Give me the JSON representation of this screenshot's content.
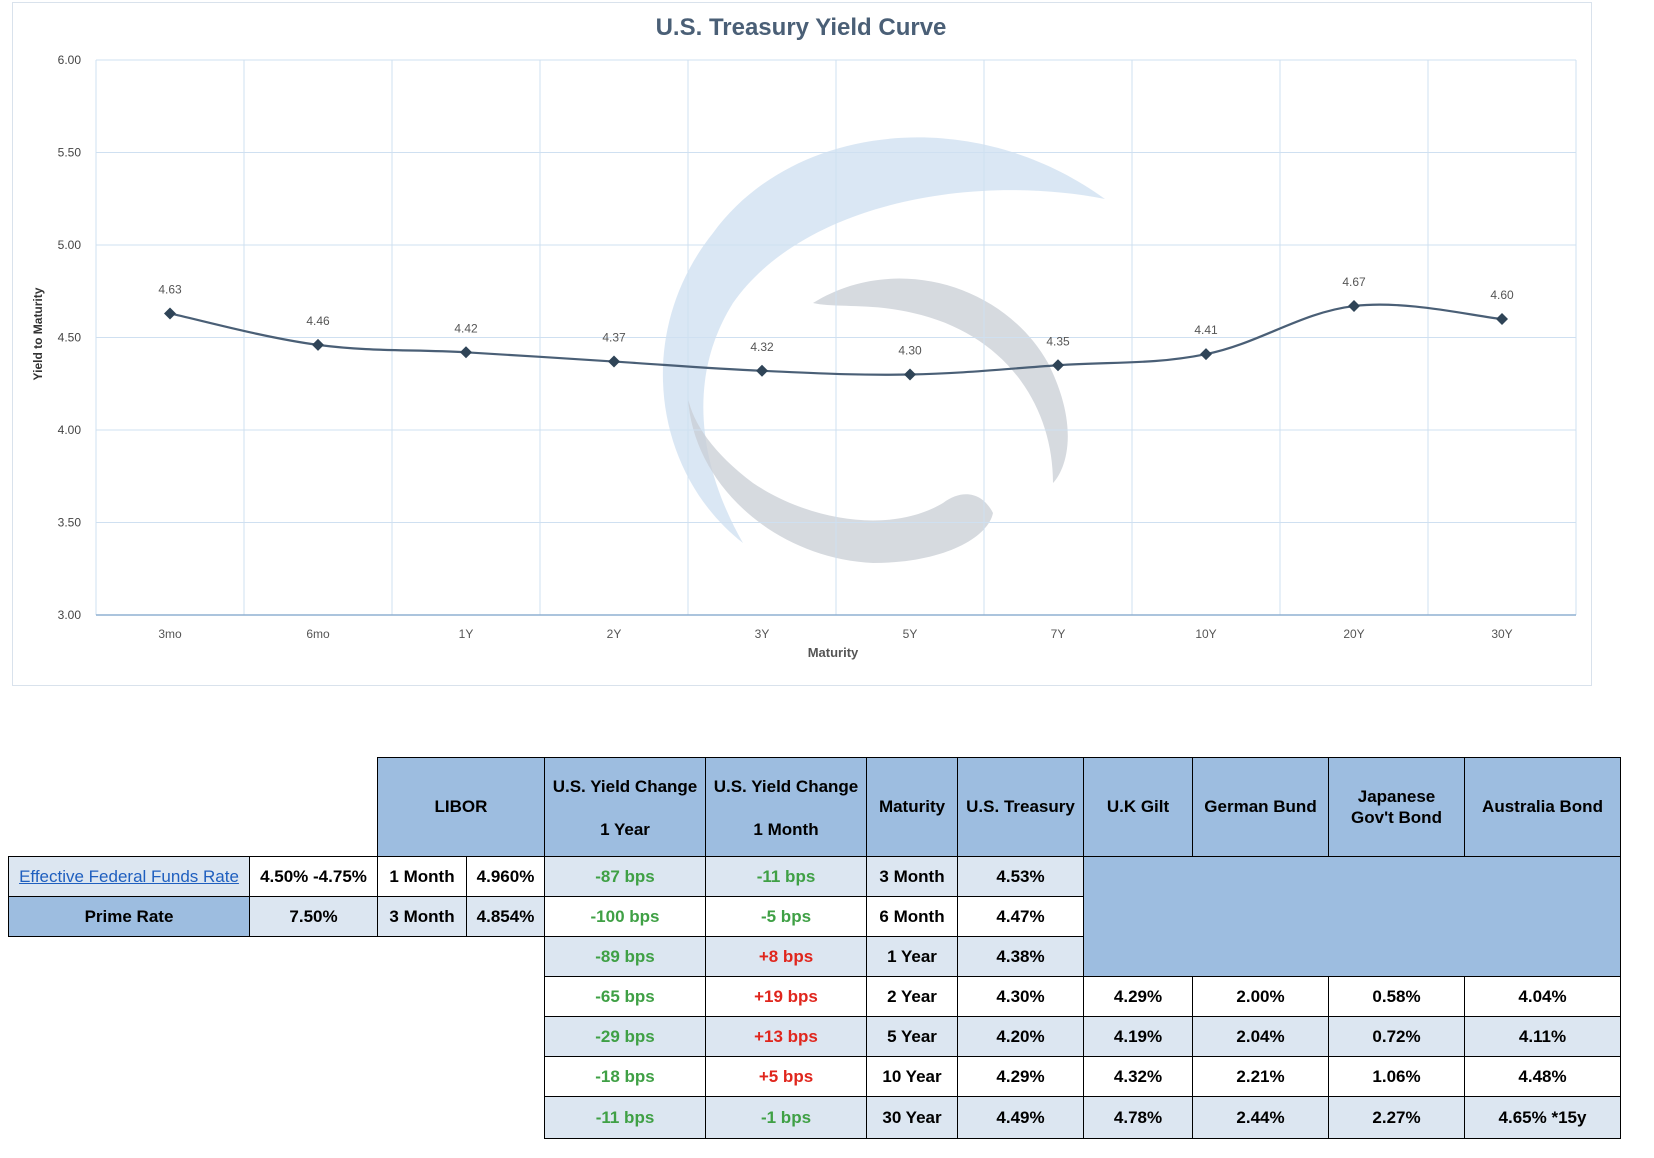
{
  "chart_data": {
    "type": "line",
    "title": "U.S. Treasury Yield Curve",
    "xlabel": "Maturity",
    "ylabel": "Yield to Maturity",
    "categories": [
      "3mo",
      "6mo",
      "1Y",
      "2Y",
      "3Y",
      "5Y",
      "7Y",
      "10Y",
      "20Y",
      "30Y"
    ],
    "values": [
      4.63,
      4.46,
      4.42,
      4.37,
      4.32,
      4.3,
      4.35,
      4.41,
      4.67,
      4.6
    ],
    "value_labels": [
      "4.63",
      "4.46",
      "4.42",
      "4.37",
      "4.32",
      "4.30",
      "4.35",
      "4.41",
      "4.67",
      "4.60"
    ],
    "ylim": [
      3.0,
      6.0
    ],
    "yticks": [
      "3.00",
      "3.50",
      "4.00",
      "4.50",
      "5.00",
      "5.50",
      "6.00"
    ],
    "grid": true,
    "line_color": "#4a5f76",
    "marker": "diamond"
  },
  "table": {
    "headers": {
      "libor": "LIBOR",
      "yc1y_line1": "U.S. Yield Change",
      "yc1y_line2": "1 Year",
      "yc1m_line1": "U.S. Yield Change",
      "yc1m_line2": "1 Month",
      "maturity": "Maturity",
      "treasury": "U.S. Treasury",
      "gilt": "U.K Gilt",
      "bund": "German Bund",
      "jgb_line1": "Japanese",
      "jgb_line2": "Gov't Bond",
      "aus": "Australia Bond"
    },
    "left": {
      "effr_label": "Effective Federal Funds Rate",
      "effr_value": "4.50% -4.75%",
      "prime_label": "Prime Rate",
      "prime_value": "7.50%"
    },
    "libor": [
      {
        "term": "1 Month",
        "rate": "4.960%"
      },
      {
        "term": "3 Month",
        "rate": "4.854%"
      }
    ],
    "rows": [
      {
        "yc1y": "-87 bps",
        "yc1m": "-11 bps",
        "maturity": "3 Month",
        "treasury": "4.53%"
      },
      {
        "yc1y": "-100 bps",
        "yc1m": "-5 bps",
        "maturity": "6 Month",
        "treasury": "4.47%"
      },
      {
        "yc1y": "-89 bps",
        "yc1m": "+8 bps",
        "maturity": "1 Year",
        "treasury": "4.38%"
      },
      {
        "yc1y": "-65 bps",
        "yc1m": "+19 bps",
        "maturity": "2 Year",
        "treasury": "4.30%",
        "gilt": "4.29%",
        "bund": "2.00%",
        "jgb": "0.58%",
        "aus": "4.04%"
      },
      {
        "yc1y": "-29 bps",
        "yc1m": "+13 bps",
        "maturity": "5 Year",
        "treasury": "4.20%",
        "gilt": "4.19%",
        "bund": "2.04%",
        "jgb": "0.72%",
        "aus": "4.11%"
      },
      {
        "yc1y": "-18 bps",
        "yc1m": "+5 bps",
        "maturity": "10 Year",
        "treasury": "4.29%",
        "gilt": "4.32%",
        "bund": "2.21%",
        "jgb": "1.06%",
        "aus": "4.48%"
      },
      {
        "yc1y": "-11 bps",
        "yc1m": "-1 bps",
        "maturity": "30 Year",
        "treasury": "4.49%",
        "gilt": "4.78%",
        "bund": "2.44%",
        "jgb": "2.27%",
        "aus": "4.65% *15y"
      }
    ]
  }
}
